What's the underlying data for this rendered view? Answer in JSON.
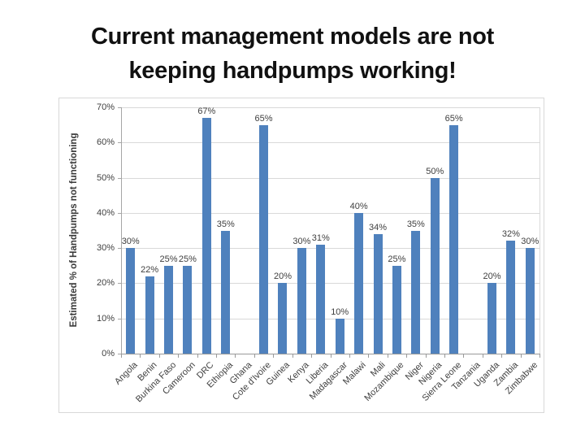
{
  "title": {
    "line1": "Current management models are not",
    "line2": "keeping handpumps working!"
  },
  "chart_data": {
    "type": "bar",
    "title": "",
    "y_axis_title": "Estimated % of Handpumps not functioning",
    "xlabel": "",
    "ylabel": "Estimated % of Handpumps not functioning",
    "ylim": [
      0,
      70
    ],
    "y_tick_step": 10,
    "y_ticks": [
      "0%",
      "10%",
      "20%",
      "30%",
      "40%",
      "50%",
      "60%",
      "70%"
    ],
    "grid": true,
    "legend": "none",
    "bar_color": "#4f81bd",
    "gridline_color": "#d9d9d9",
    "categories": [
      "Angola",
      "Benin",
      "Burkina Faso",
      "Cameroon",
      "DRC",
      "Ethiopia",
      "Ghana",
      "Cote d'Ivoire",
      "Guinea",
      "Kenya",
      "Liberia",
      "Madagascar",
      "Malawi",
      "Mali",
      "Mozambique",
      "Niger",
      "Nigeria",
      "Sierra Leone",
      "Tanzania",
      "Uganda",
      "Zambia",
      "Zimbabwe"
    ],
    "values": [
      30,
      22,
      25,
      25,
      67,
      35,
      null,
      65,
      20,
      30,
      31,
      10,
      40,
      34,
      25,
      35,
      50,
      65,
      null,
      20,
      32,
      30
    ],
    "value_labels": [
      "30%",
      "22%",
      "25%",
      "25%",
      "67%",
      "35%",
      null,
      "65%",
      "20%",
      "30%",
      "31%",
      "10%",
      "40%",
      "34%",
      "25%",
      "35%",
      "50%",
      "65%",
      null,
      "20%",
      "32%",
      "30%"
    ]
  }
}
